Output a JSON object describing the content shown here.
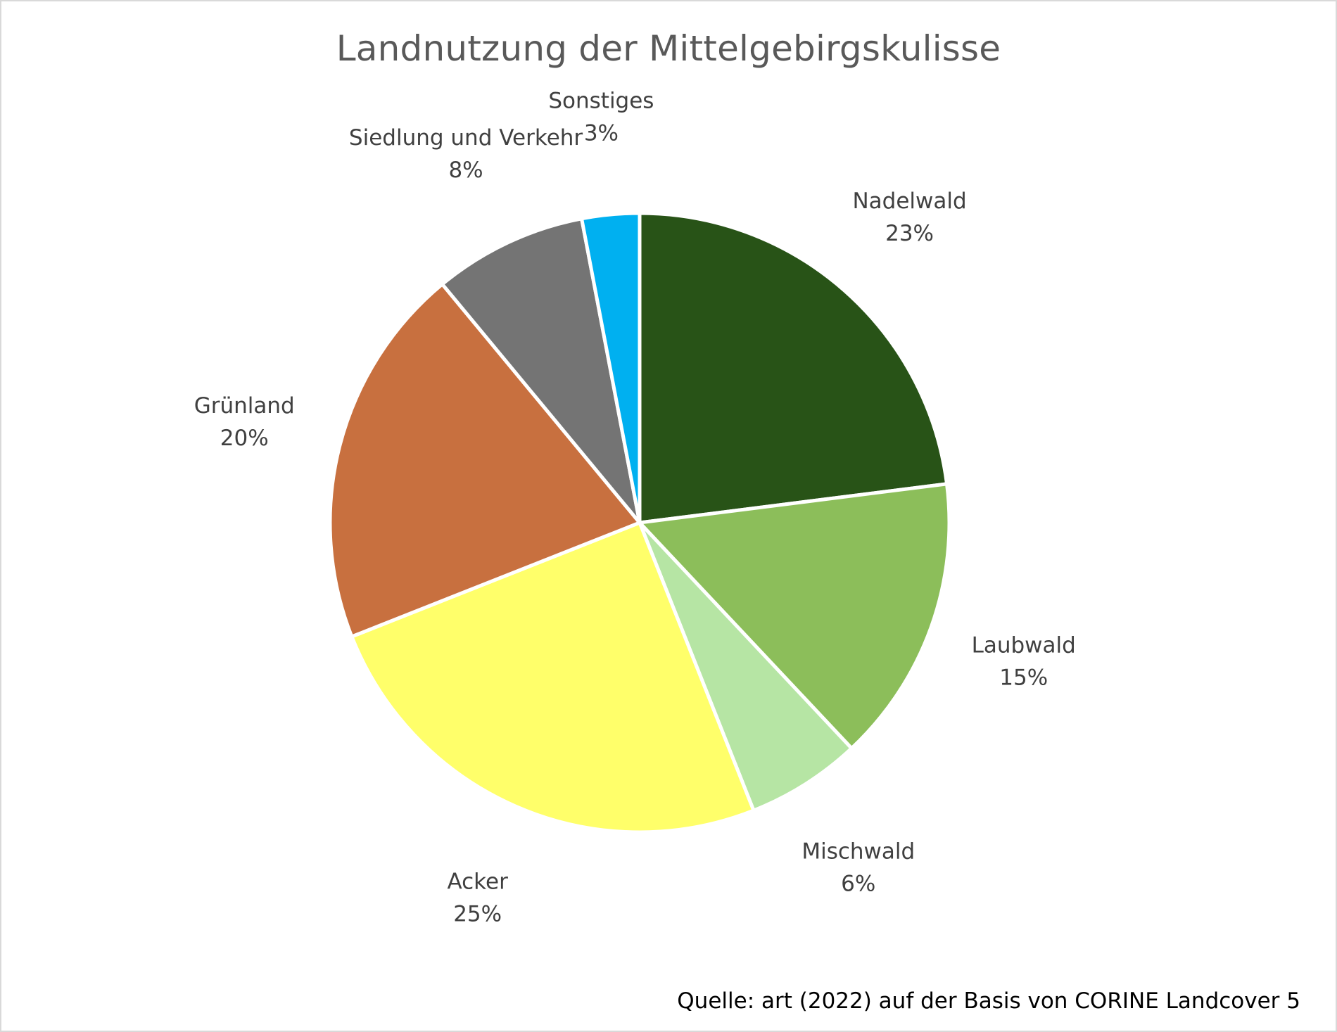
{
  "chart_data": {
    "type": "pie",
    "title": "Landnutzung der Mittelgebirgskulisse",
    "categories": [
      "Nadelwald",
      "Laubwald",
      "Mischwald",
      "Acker",
      "Grünland",
      "Siedlung und Verkehr",
      "Sonstiges"
    ],
    "values": [
      23,
      15,
      6,
      25,
      20,
      8,
      3
    ],
    "value_labels": [
      "23%",
      "15%",
      "6%",
      "25%",
      "20%",
      "8%",
      "3%"
    ],
    "colors": [
      "#285317",
      "#8cbe5a",
      "#b6e5a4",
      "#ffff6a",
      "#c8703f",
      "#747474",
      "#00b0f0"
    ],
    "unit": "%",
    "data_labels": "outside",
    "legend": "none",
    "start_angle": "12 o'clock",
    "direction": "clockwise"
  },
  "source_note": "Quelle: art (2022) auf der Basis von CORINE Landcover 5"
}
